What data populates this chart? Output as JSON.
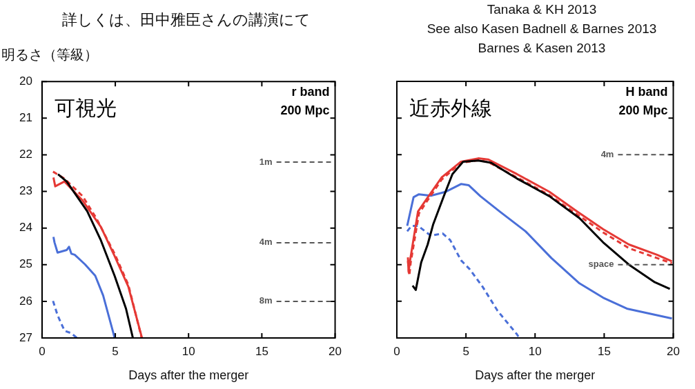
{
  "chart_data": [
    {
      "type": "line",
      "title": "詳しくは、田中雅臣さんの講演にて",
      "ylabel": "明るさ（等級）",
      "xlabel": "Days after the merger",
      "annotations": [
        "可視光",
        "r band",
        "200 Mpc"
      ],
      "xlim": [
        0,
        20
      ],
      "xticks": [
        0,
        5,
        10,
        15,
        20
      ],
      "ylim": [
        27,
        20
      ],
      "yticks": [
        20,
        21,
        22,
        23,
        24,
        25,
        26,
        27
      ],
      "grid": false,
      "legend": false,
      "ref_lines": [
        {
          "axis": "y",
          "value": 22.2,
          "label": "1m",
          "color": "#555555",
          "line_style": "dashed"
        },
        {
          "axis": "y",
          "value": 24.4,
          "label": "4m",
          "color": "#555555",
          "line_style": "dashed"
        },
        {
          "axis": "y",
          "value": 26.0,
          "label": "8m",
          "color": "#555555",
          "line_style": "dashed"
        }
      ],
      "series": [
        {
          "color": "#000000",
          "line_style": "solid",
          "x": [
            1.09,
            1.68,
            3.08,
            4.02,
            4.95,
            5.73,
            6.2
          ],
          "values": [
            22.53,
            22.73,
            23.54,
            24.34,
            25.3,
            26.2,
            27
          ]
        },
        {
          "color": "#e53935",
          "line_style": "solid",
          "x": [
            0.78,
            0.9,
            1.53,
            2.77,
            4.02,
            4.95,
            5.89,
            6.82
          ],
          "values": [
            22.62,
            22.86,
            22.73,
            23.25,
            23.97,
            24.76,
            25.6,
            27
          ]
        },
        {
          "color": "#e53935",
          "line_style": "dashed",
          "x": [
            0.75,
            1.53,
            2.77,
            3.7,
            4.95,
            5.89,
            6.8
          ],
          "values": [
            22.46,
            22.65,
            23.13,
            23.73,
            24.7,
            25.55,
            27
          ]
        },
        {
          "color": "#4a6fd8",
          "line_style": "solid",
          "x": [
            0.78,
            0.85,
            1.06,
            1.68,
            1.84,
            2.0,
            2.23,
            2.93,
            3.63,
            4.17,
            4.87,
            4.95
          ],
          "values": [
            24.24,
            24.39,
            24.67,
            24.6,
            24.51,
            24.7,
            24.73,
            24.99,
            25.3,
            25.84,
            26.87,
            27
          ]
        },
        {
          "color": "#4a6fd8",
          "line_style": "dashed",
          "x": [
            0.75,
            1.06,
            1.53,
            1.99,
            2.38
          ],
          "values": [
            25.99,
            26.38,
            26.8,
            26.87,
            27
          ]
        }
      ]
    },
    {
      "type": "line",
      "title": "Tanaka & KH 2013",
      "subtitle": "See also Kasen Badnell & Barnes 2013\nBarnes & Kasen 2013",
      "xlabel": "Days after the merger",
      "annotations": [
        "近赤外線",
        "H band",
        "200 Mpc"
      ],
      "xlim": [
        0,
        20
      ],
      "xticks": [
        0,
        5,
        10,
        15,
        20
      ],
      "ylim": [
        27,
        20
      ],
      "yticks": [
        20,
        21,
        22,
        23,
        24,
        25,
        26,
        27
      ],
      "tick_labels": "x",
      "grid": false,
      "legend": false,
      "ref_lines": [
        {
          "axis": "y",
          "value": 22.0,
          "label": "4m",
          "color": "#555555",
          "line_style": "dashed"
        },
        {
          "axis": "y",
          "value": 25.0,
          "label": "space",
          "color": "#555555",
          "line_style": "dashed"
        }
      ],
      "series": [
        {
          "color": "#000000",
          "line_style": "solid",
          "x": [
            1.14,
            1.37,
            1.76,
            2.23,
            2.62,
            3.4,
            4.02,
            4.8,
            5.89,
            6.82,
            8.69,
            11.03,
            13.21,
            14.92,
            16.79,
            18.66,
            19.75
          ],
          "values": [
            25.57,
            25.69,
            24.94,
            24.45,
            23.91,
            23.13,
            22.53,
            22.19,
            22.16,
            22.22,
            22.65,
            23.13,
            23.73,
            24.39,
            25.0,
            25.48,
            25.66
          ]
        },
        {
          "color": "#e53935",
          "line_style": "solid",
          "x": [
            0.8,
            0.85,
            0.95,
            1.53,
            2.3,
            3.24,
            4.64,
            5.89,
            6.6,
            8.69,
            11.03,
            13.05,
            14.92,
            16.79,
            18.82,
            19.9
          ],
          "values": [
            24.8,
            25.2,
            24.9,
            23.55,
            23.13,
            22.62,
            22.19,
            22.1,
            22.13,
            22.53,
            23.01,
            23.55,
            24.03,
            24.45,
            24.73,
            24.91
          ]
        },
        {
          "color": "#e53935",
          "line_style": "dashed",
          "x": [
            0.8,
            0.9,
            1.0,
            1.6,
            2.3,
            3.24,
            4.64,
            5.89,
            6.6,
            8.69,
            11.03,
            13.05,
            14.92,
            16.79,
            18.82,
            19.9
          ],
          "values": [
            24.9,
            25.3,
            24.95,
            23.6,
            23.2,
            22.68,
            22.22,
            22.15,
            22.2,
            22.62,
            23.1,
            23.63,
            24.12,
            24.55,
            24.82,
            24.96
          ]
        },
        {
          "color": "#4a6fd8",
          "line_style": "solid",
          "x": [
            0.75,
            1.21,
            1.6,
            2.46,
            3.55,
            4.64,
            5.19,
            6.04,
            7.44,
            9.31,
            11.18,
            13.21,
            14.92,
            16.64,
            19.9
          ],
          "values": [
            23.94,
            23.16,
            23.08,
            23.12,
            23.01,
            22.8,
            22.83,
            23.13,
            23.55,
            24.09,
            24.82,
            25.51,
            25.9,
            26.2,
            26.47
          ]
        },
        {
          "color": "#4a6fd8",
          "line_style": "dashed",
          "x": [
            0.75,
            1.06,
            1.53,
            2.46,
            3.32,
            3.86,
            4.64,
            5.26,
            6.2,
            7.29,
            8.69,
            8.85
          ],
          "values": [
            24.09,
            23.94,
            23.94,
            24.21,
            24.15,
            24.33,
            24.88,
            25.12,
            25.6,
            26.26,
            26.9,
            27
          ]
        }
      ]
    }
  ]
}
